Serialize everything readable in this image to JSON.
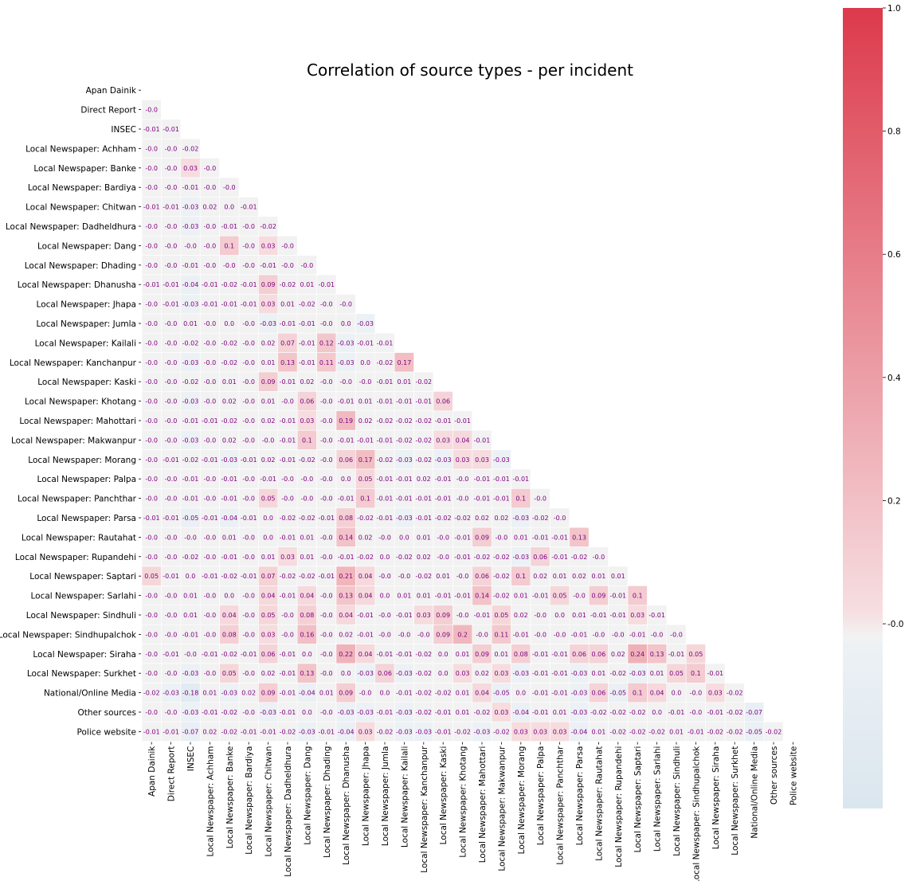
{
  "chart_data": {
    "type": "heatmap",
    "title": "Correlation of source types - per incident",
    "labels": [
      "Apan Dainik",
      "Direct Report",
      "INSEC",
      "Local Newspaper: Achham",
      "Local Newspaper: Banke",
      "Local Newspaper: Bardiya",
      "Local Newspaper: Chitwan",
      "Local Newspaper: Dadheldhura",
      "Local Newspaper: Dang",
      "Local Newspaper: Dhading",
      "Local Newspaper: Dhanusha",
      "Local Newspaper: Jhapa",
      "Local Newspaper: Jumla",
      "Local Newspaper: Kailali",
      "Local Newspaper: Kanchanpur",
      "Local Newspaper: Kaski",
      "Local Newspaper: Khotang",
      "Local Newspaper: Mahottari",
      "Local Newspaper: Makwanpur",
      "Local Newspaper: Morang",
      "Local Newspaper: Palpa",
      "Local Newspaper: Panchthar",
      "Local Newspaper: Parsa",
      "Local Newspaper: Rautahat",
      "Local Newspaper: Rupandehi",
      "Local Newspaper: Saptari",
      "Local Newspaper: Sarlahi",
      "Local Newspaper: Sindhuli",
      "Local Newspaper: Sindhupalchok",
      "Local Newspaper: Siraha",
      "Local Newspaper: Surkhet",
      "National/Online Media",
      "Other sources",
      "Police website"
    ],
    "lower_triangle": [
      [],
      [
        "-0.0"
      ],
      [
        "-0.01",
        "-0.01"
      ],
      [
        "-0.0",
        "-0.0",
        "-0.02"
      ],
      [
        "-0.0",
        "-0.0",
        "0.03",
        "-0.0"
      ],
      [
        "-0.0",
        "-0.0",
        "-0.01",
        "-0.0",
        "-0.0"
      ],
      [
        "-0.01",
        "-0.01",
        "-0.03",
        "0.02",
        "0.0",
        "-0.01"
      ],
      [
        "-0.0",
        "-0.0",
        "-0.03",
        "-0.0",
        "-0.01",
        "-0.0",
        "-0.02"
      ],
      [
        "-0.0",
        "-0.0",
        "-0.0",
        "-0.0",
        "0.1",
        "-0.0",
        "0.03",
        "-0.0"
      ],
      [
        "-0.0",
        "-0.0",
        "-0.01",
        "-0.0",
        "-0.0",
        "-0.0",
        "-0.01",
        "-0.0",
        "-0.0"
      ],
      [
        "-0.01",
        "-0.01",
        "-0.04",
        "-0.01",
        "-0.02",
        "-0.01",
        "0.09",
        "-0.02",
        "0.01",
        "-0.01"
      ],
      [
        "-0.0",
        "-0.01",
        "-0.03",
        "-0.01",
        "-0.01",
        "-0.01",
        "0.03",
        "0.01",
        "-0.02",
        "-0.0",
        "-0.0"
      ],
      [
        "-0.0",
        "-0.0",
        "0.01",
        "-0.0",
        "0.0",
        "-0.0",
        "-0.03",
        "-0.01",
        "-0.01",
        "-0.0",
        "0.0",
        "-0.03"
      ],
      [
        "-0.0",
        "-0.0",
        "-0.02",
        "-0.0",
        "-0.02",
        "-0.0",
        "0.02",
        "0.07",
        "-0.01",
        "0.12",
        "-0.03",
        "-0.01",
        "-0.01"
      ],
      [
        "-0.0",
        "-0.0",
        "-0.03",
        "-0.0",
        "-0.02",
        "-0.0",
        "0.01",
        "0.13",
        "-0.01",
        "0.11",
        "-0.03",
        "0.0",
        "-0.02",
        "0.17"
      ],
      [
        "-0.0",
        "-0.0",
        "-0.02",
        "-0.0",
        "0.01",
        "-0.0",
        "0.09",
        "-0.01",
        "0.02",
        "-0.0",
        "-0.0",
        "-0.0",
        "-0.01",
        "0.01",
        "-0.02"
      ],
      [
        "-0.0",
        "-0.0",
        "-0.03",
        "-0.0",
        "0.02",
        "-0.0",
        "0.01",
        "-0.0",
        "0.06",
        "-0.0",
        "-0.01",
        "0.01",
        "-0.01",
        "-0.01",
        "-0.01",
        "0.06"
      ],
      [
        "-0.0",
        "-0.0",
        "-0.01",
        "-0.01",
        "-0.02",
        "-0.0",
        "0.02",
        "-0.01",
        "0.03",
        "-0.0",
        "0.19",
        "0.02",
        "-0.02",
        "-0.02",
        "-0.02",
        "-0.01",
        "-0.01"
      ],
      [
        "-0.0",
        "-0.0",
        "-0.03",
        "-0.0",
        "0.02",
        "-0.0",
        "-0.0",
        "-0.01",
        "0.1",
        "-0.0",
        "-0.01",
        "-0.01",
        "-0.01",
        "-0.02",
        "-0.02",
        "0.03",
        "0.04",
        "-0.01"
      ],
      [
        "-0.0",
        "-0.01",
        "-0.02",
        "-0.01",
        "-0.03",
        "-0.01",
        "0.02",
        "-0.01",
        "-0.02",
        "-0.0",
        "0.06",
        "0.17",
        "-0.02",
        "-0.03",
        "-0.02",
        "-0.03",
        "0.03",
        "0.03",
        "-0.03"
      ],
      [
        "-0.0",
        "-0.0",
        "-0.01",
        "-0.0",
        "-0.01",
        "-0.0",
        "-0.01",
        "-0.0",
        "-0.0",
        "-0.0",
        "0.0",
        "0.05",
        "-0.01",
        "-0.01",
        "0.02",
        "-0.01",
        "-0.0",
        "-0.01",
        "-0.01",
        "-0.01"
      ],
      [
        "-0.0",
        "-0.0",
        "-0.01",
        "-0.0",
        "-0.01",
        "-0.0",
        "0.05",
        "-0.0",
        "-0.0",
        "-0.0",
        "-0.01",
        "0.1",
        "-0.01",
        "-0.01",
        "-0.01",
        "-0.01",
        "-0.0",
        "-0.01",
        "-0.01",
        "0.1",
        "-0.0"
      ],
      [
        "-0.01",
        "-0.01",
        "-0.05",
        "-0.01",
        "-0.04",
        "-0.01",
        "0.0",
        "-0.02",
        "-0.02",
        "-0.01",
        "0.08",
        "-0.02",
        "-0.01",
        "-0.03",
        "-0.01",
        "-0.02",
        "-0.02",
        "0.02",
        "0.02",
        "-0.03",
        "-0.02",
        "-0.0"
      ],
      [
        "-0.0",
        "-0.0",
        "-0.0",
        "-0.0",
        "0.01",
        "-0.0",
        "0.0",
        "-0.01",
        "0.01",
        "-0.0",
        "0.14",
        "0.02",
        "-0.0",
        "0.0",
        "0.01",
        "-0.0",
        "-0.01",
        "0.09",
        "-0.0",
        "0.01",
        "-0.01",
        "-0.01",
        "0.13"
      ],
      [
        "-0.0",
        "-0.0",
        "-0.02",
        "-0.0",
        "-0.01",
        "-0.0",
        "0.01",
        "0.03",
        "0.01",
        "-0.0",
        "-0.01",
        "-0.02",
        "0.0",
        "-0.02",
        "0.02",
        "-0.0",
        "-0.01",
        "-0.02",
        "-0.02",
        "-0.03",
        "0.06",
        "-0.01",
        "-0.02",
        "-0.0"
      ],
      [
        "0.05",
        "-0.01",
        "0.0",
        "-0.01",
        "-0.02",
        "-0.01",
        "0.07",
        "-0.02",
        "-0.02",
        "-0.01",
        "0.21",
        "0.04",
        "-0.0",
        "-0.0",
        "-0.02",
        "0.01",
        "-0.0",
        "0.06",
        "-0.02",
        "0.1",
        "0.02",
        "0.01",
        "0.02",
        "0.01",
        "0.01"
      ],
      [
        "-0.0",
        "-0.0",
        "0.01",
        "-0.0",
        "0.0",
        "-0.0",
        "0.04",
        "-0.01",
        "0.04",
        "-0.0",
        "0.13",
        "0.04",
        "0.0",
        "0.01",
        "0.01",
        "-0.01",
        "-0.01",
        "0.14",
        "-0.02",
        "0.01",
        "-0.01",
        "0.05",
        "-0.0",
        "0.09",
        "-0.01",
        "0.1"
      ],
      [
        "-0.0",
        "-0.0",
        "0.01",
        "-0.0",
        "0.04",
        "-0.0",
        "0.05",
        "-0.0",
        "0.08",
        "-0.0",
        "0.04",
        "-0.01",
        "-0.0",
        "-0.01",
        "0.03",
        "0.09",
        "-0.0",
        "-0.01",
        "0.05",
        "0.02",
        "-0.0",
        "0.0",
        "0.01",
        "-0.01",
        "-0.01",
        "0.03",
        "-0.01"
      ],
      [
        "-0.0",
        "-0.0",
        "-0.01",
        "-0.0",
        "0.08",
        "-0.0",
        "0.03",
        "-0.0",
        "0.16",
        "-0.0",
        "0.02",
        "-0.01",
        "-0.0",
        "-0.0",
        "-0.0",
        "0.09",
        "0.2",
        "-0.0",
        "0.11",
        "-0.01",
        "-0.0",
        "-0.0",
        "-0.01",
        "-0.0",
        "-0.0",
        "-0.01",
        "-0.0",
        "-0.0"
      ],
      [
        "-0.0",
        "-0.01",
        "-0.0",
        "-0.01",
        "-0.02",
        "-0.01",
        "0.06",
        "-0.01",
        "0.0",
        "-0.0",
        "0.22",
        "0.04",
        "-0.01",
        "-0.01",
        "-0.02",
        "0.0",
        "0.01",
        "0.09",
        "0.01",
        "0.08",
        "-0.01",
        "-0.01",
        "0.06",
        "0.06",
        "0.02",
        "0.24",
        "0.13",
        "-0.01",
        "0.05"
      ],
      [
        "-0.0",
        "-0.0",
        "-0.03",
        "-0.0",
        "0.05",
        "-0.0",
        "0.02",
        "-0.01",
        "0.13",
        "-0.0",
        "0.0",
        "-0.03",
        "0.06",
        "-0.03",
        "-0.02",
        "0.0",
        "0.03",
        "0.02",
        "0.03",
        "-0.03",
        "-0.01",
        "-0.01",
        "-0.03",
        "0.01",
        "-0.02",
        "-0.03",
        "0.01",
        "0.05",
        "0.1",
        "-0.01"
      ],
      [
        "-0.02",
        "-0.03",
        "-0.18",
        "0.01",
        "-0.03",
        "0.02",
        "0.09",
        "-0.01",
        "-0.04",
        "0.01",
        "0.09",
        "-0.0",
        "0.0",
        "-0.01",
        "-0.02",
        "-0.02",
        "0.01",
        "0.04",
        "-0.05",
        "0.0",
        "-0.01",
        "-0.01",
        "-0.03",
        "0.06",
        "-0.05",
        "0.1",
        "0.04",
        "0.0",
        "-0.0",
        "0.03",
        "-0.02"
      ],
      [
        "-0.0",
        "-0.0",
        "-0.03",
        "-0.01",
        "-0.02",
        "-0.0",
        "-0.03",
        "-0.01",
        "0.0",
        "-0.0",
        "-0.03",
        "-0.03",
        "-0.01",
        "-0.03",
        "-0.02",
        "-0.01",
        "0.01",
        "-0.02",
        "0.03",
        "-0.04",
        "-0.01",
        "0.01",
        "-0.03",
        "-0.02",
        "-0.02",
        "-0.02",
        "0.0",
        "-0.01",
        "-0.0",
        "-0.01",
        "-0.02",
        "-0.07"
      ],
      [
        "-0.01",
        "-0.01",
        "-0.07",
        "0.02",
        "-0.02",
        "-0.01",
        "-0.01",
        "-0.02",
        "-0.03",
        "-0.01",
        "-0.04",
        "0.03",
        "-0.02",
        "-0.03",
        "-0.03",
        "-0.01",
        "-0.02",
        "-0.03",
        "-0.02",
        "0.03",
        "0.03",
        "0.03",
        "-0.04",
        "0.01",
        "-0.02",
        "-0.02",
        "-0.02",
        "0.01",
        "-0.01",
        "-0.02",
        "-0.02",
        "-0.05",
        "-0.02"
      ]
    ],
    "colorbar": {
      "range": [
        -0.3,
        1.0
      ],
      "ticks": [
        "-0.0",
        "0.2",
        "0.4",
        "0.6",
        "0.8",
        "1.0"
      ],
      "negative_color": "#dae6ee",
      "center_color": "#f2f2f2",
      "positive_color": "#dc3a4b"
    },
    "grid": false,
    "mask": "upper-triangle"
  }
}
